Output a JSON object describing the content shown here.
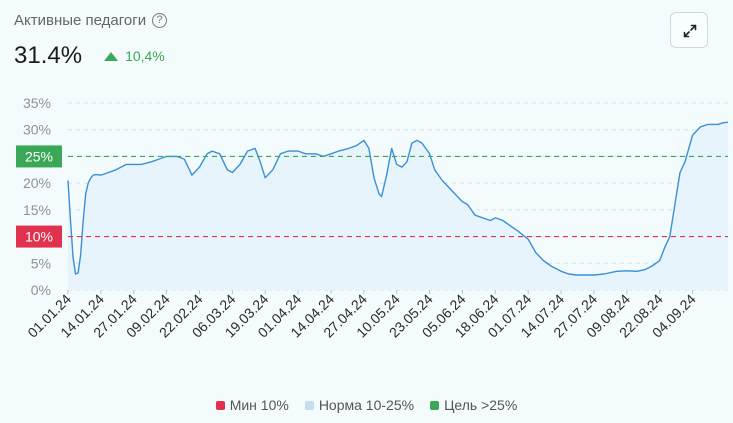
{
  "header": {
    "title": "Активные педагоги",
    "help_icon": "question-circle-icon",
    "value": "31.4%",
    "delta": "10,4%",
    "delta_icon": "triangle-up-icon",
    "expand_icon": "expand-arrows-icon"
  },
  "colors": {
    "line": "#3b8fd6",
    "fill": "#e3f2fb",
    "min": "#e0314f",
    "goal": "#3aa856",
    "norm": "#c5dff2"
  },
  "legend": [
    {
      "label": "Мин 10%",
      "color": "#e0314f"
    },
    {
      "label": "Норма 10-25%",
      "color": "#c5dff2"
    },
    {
      "label": "Цель >25%",
      "color": "#3aa856"
    }
  ],
  "chart_data": {
    "type": "area",
    "y_ticks": [
      "35%",
      "30%",
      "25%",
      "20%",
      "15%",
      "10%",
      "5%",
      "0%"
    ],
    "ylim": [
      0,
      35
    ],
    "x_labels": [
      "01.01.24",
      "14.01.24",
      "27.01.24",
      "09.02.24",
      "22.02.24",
      "06.03.24",
      "19.03.24",
      "01.04.24",
      "14.04.24",
      "27.04.24",
      "10.05.24",
      "23.05.24",
      "05.06.24",
      "18.06.24",
      "01.07.24",
      "14.07.24",
      "27.07.24",
      "09.08.24",
      "22.08.24",
      "04.09.24"
    ],
    "reference_lines": [
      {
        "label": "25%",
        "value": 25,
        "color": "#3aa856"
      },
      {
        "label": "10%",
        "value": 10,
        "color": "#e0314f"
      }
    ],
    "x": [
      "2024-01-01",
      "2024-01-02",
      "2024-01-03",
      "2024-01-04",
      "2024-01-05",
      "2024-01-06",
      "2024-01-07",
      "2024-01-08",
      "2024-01-09",
      "2024-01-10",
      "2024-01-11",
      "2024-01-12",
      "2024-01-14",
      "2024-01-17",
      "2024-01-20",
      "2024-01-24",
      "2024-01-27",
      "2024-01-30",
      "2024-02-03",
      "2024-02-06",
      "2024-02-09",
      "2024-02-13",
      "2024-02-16",
      "2024-02-19",
      "2024-02-22",
      "2024-02-25",
      "2024-02-27",
      "2024-03-01",
      "2024-03-04",
      "2024-03-06",
      "2024-03-09",
      "2024-03-12",
      "2024-03-15",
      "2024-03-17",
      "2024-03-19",
      "2024-03-22",
      "2024-03-25",
      "2024-03-28",
      "2024-04-01",
      "2024-04-04",
      "2024-04-08",
      "2024-04-11",
      "2024-04-14",
      "2024-04-17",
      "2024-04-21",
      "2024-04-24",
      "2024-04-27",
      "2024-04-29",
      "2024-05-01",
      "2024-05-02",
      "2024-05-03",
      "2024-05-04",
      "2024-05-06",
      "2024-05-08",
      "2024-05-10",
      "2024-05-12",
      "2024-05-14",
      "2024-05-16",
      "2024-05-18",
      "2024-05-20",
      "2024-05-23",
      "2024-05-25",
      "2024-05-28",
      "2024-05-31",
      "2024-06-03",
      "2024-06-05",
      "2024-06-07",
      "2024-06-10",
      "2024-06-13",
      "2024-06-16",
      "2024-06-18",
      "2024-06-21",
      "2024-06-24",
      "2024-06-27",
      "2024-07-01",
      "2024-07-04",
      "2024-07-07",
      "2024-07-10",
      "2024-07-14",
      "2024-07-17",
      "2024-07-20",
      "2024-07-24",
      "2024-07-27",
      "2024-07-31",
      "2024-08-05",
      "2024-08-09",
      "2024-08-13",
      "2024-08-16",
      "2024-08-19",
      "2024-08-22",
      "2024-08-24",
      "2024-08-26",
      "2024-08-28",
      "2024-08-30",
      "2024-09-01",
      "2024-09-04",
      "2024-09-07",
      "2024-09-10",
      "2024-09-12",
      "2024-09-14",
      "2024-09-16",
      "2024-09-18"
    ],
    "values": [
      20.5,
      13.0,
      6.0,
      3.0,
      3.2,
      6.5,
      13.0,
      18.0,
      20.0,
      21.0,
      21.5,
      21.6,
      21.5,
      22.0,
      22.5,
      23.5,
      23.5,
      23.5,
      24.0,
      24.5,
      25.0,
      25.0,
      24.5,
      21.5,
      23.0,
      25.5,
      26.0,
      25.5,
      22.5,
      22.0,
      23.5,
      26.0,
      26.5,
      24.0,
      21.0,
      22.5,
      25.5,
      26.0,
      26.0,
      25.5,
      25.5,
      25.0,
      25.5,
      26.0,
      26.5,
      27.0,
      28.0,
      26.5,
      21.0,
      19.5,
      18.0,
      17.5,
      21.5,
      26.5,
      23.5,
      23.0,
      24.0,
      27.5,
      28.0,
      27.5,
      25.5,
      22.5,
      20.5,
      19.0,
      17.5,
      16.5,
      16.0,
      14.0,
      13.5,
      13.0,
      13.5,
      13.0,
      12.0,
      11.0,
      9.5,
      7.0,
      5.5,
      4.5,
      3.5,
      3.0,
      2.8,
      2.8,
      2.8,
      3.0,
      3.5,
      3.6,
      3.5,
      3.8,
      4.5,
      5.5,
      8.0,
      10.0,
      16.0,
      22.0,
      24.0,
      29.0,
      30.5,
      31.0,
      31.0,
      31.0,
      31.3,
      31.4
    ]
  }
}
